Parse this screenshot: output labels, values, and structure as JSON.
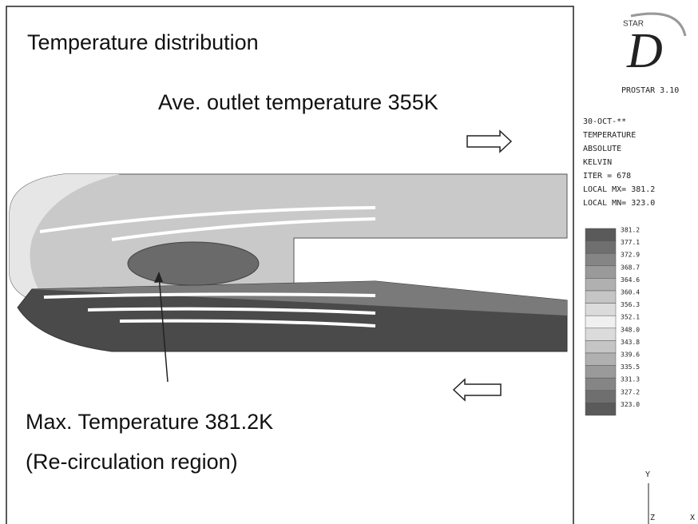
{
  "title": "Temperature distribution",
  "annotations": {
    "outlet": "Ave. outlet temperature 355K",
    "max": "Max. Temperature 381.2K",
    "region": "(Re-circulation region)"
  },
  "logo": {
    "brand": "STAR",
    "letter": "D",
    "product": "PROSTAR 3.10"
  },
  "info": [
    "30-OCT-**",
    "TEMPERATURE",
    "ABSOLUTE",
    "KELVIN",
    "ITER =   678",
    "LOCAL MX=  381.2",
    "LOCAL MN=  323.0"
  ],
  "legend": [
    "381.2",
    "377.1",
    "372.9",
    "368.7",
    "364.6",
    "360.4",
    "356.3",
    "352.1",
    "348.0",
    "343.8",
    "339.6",
    "335.5",
    "331.3",
    "327.2",
    "323.0"
  ],
  "axes": {
    "y": "Y",
    "z": "Z",
    "x": "X"
  }
}
